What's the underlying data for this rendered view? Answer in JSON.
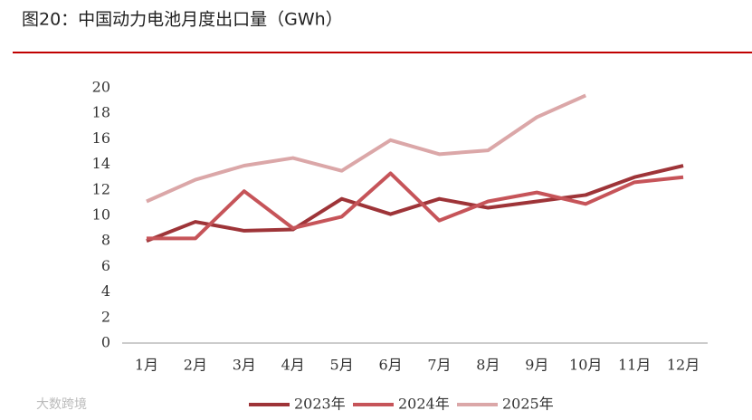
{
  "chart_data": {
    "type": "line",
    "title": "图20：中国动力电池月度出口量（GWh）",
    "watermark": "大数跨境",
    "categories": [
      "1月",
      "2月",
      "3月",
      "4月",
      "5月",
      "6月",
      "7月",
      "8月",
      "9月",
      "10月",
      "11月",
      "12月"
    ],
    "series": [
      {
        "name": "2023年",
        "color": "#9e3438",
        "values": [
          8.0,
          9.5,
          8.8,
          8.9,
          11.3,
          10.1,
          11.3,
          10.6,
          11.1,
          11.6,
          13.0,
          13.9
        ]
      },
      {
        "name": "2024年",
        "color": "#c65459",
        "values": [
          8.2,
          8.2,
          11.9,
          9.0,
          9.9,
          13.3,
          9.6,
          11.1,
          11.8,
          10.9,
          12.6,
          13.0
        ]
      },
      {
        "name": "2025年",
        "color": "#dba7a8",
        "values": [
          11.1,
          12.8,
          13.9,
          14.5,
          13.5,
          15.9,
          14.8,
          15.1,
          17.7,
          19.4,
          null,
          null
        ]
      }
    ],
    "ylim": [
      0,
      20
    ],
    "yticks": [
      0,
      2,
      4,
      6,
      8,
      10,
      12,
      14,
      16,
      18,
      20
    ],
    "legend": "bottom"
  }
}
